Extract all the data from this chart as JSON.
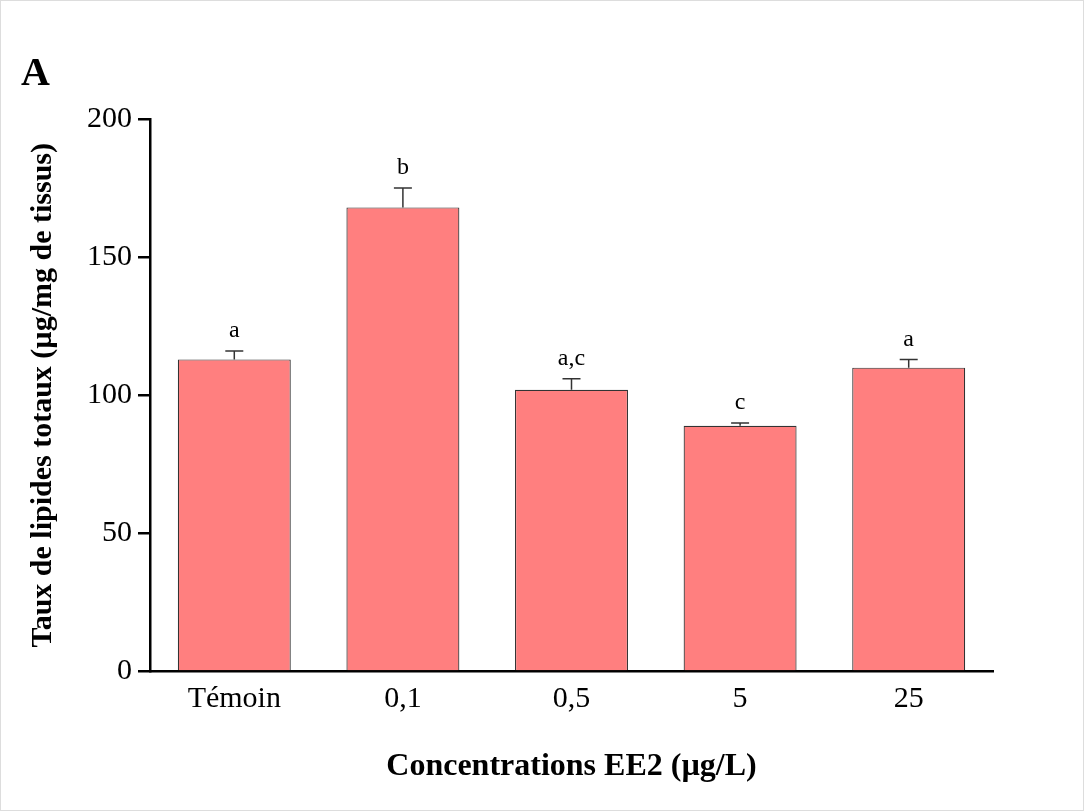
{
  "chart_data": {
    "type": "bar",
    "title": "A",
    "xlabel": "Concentrations EE2 (µg/L)",
    "ylabel": "Taux de lipides totaux (µg/mg de tissus)",
    "categories": [
      "Témoin",
      "0,1",
      "0,5",
      "5",
      "25"
    ],
    "values": [
      113,
      168,
      102,
      89,
      110
    ],
    "errors": [
      [
        113,
        116
      ],
      [
        168,
        175
      ],
      [
        102,
        106
      ],
      [
        89,
        90
      ],
      [
        110,
        113
      ]
    ],
    "color": "#ff7f7f",
    "ylim": [
      0,
      200
    ],
    "yticks": [
      0,
      50,
      100,
      150,
      200
    ],
    "grid": false,
    "legend": false,
    "annotations": [
      {
        "text": "a",
        "x": "Témoin",
        "y": 116
      },
      {
        "text": "b",
        "x": "0,1",
        "y": 175
      },
      {
        "text": "a,c",
        "x": "0,5",
        "y": 106
      },
      {
        "text": "c",
        "x": "5",
        "y": 90
      },
      {
        "text": "a",
        "x": "25",
        "y": 113
      }
    ]
  }
}
